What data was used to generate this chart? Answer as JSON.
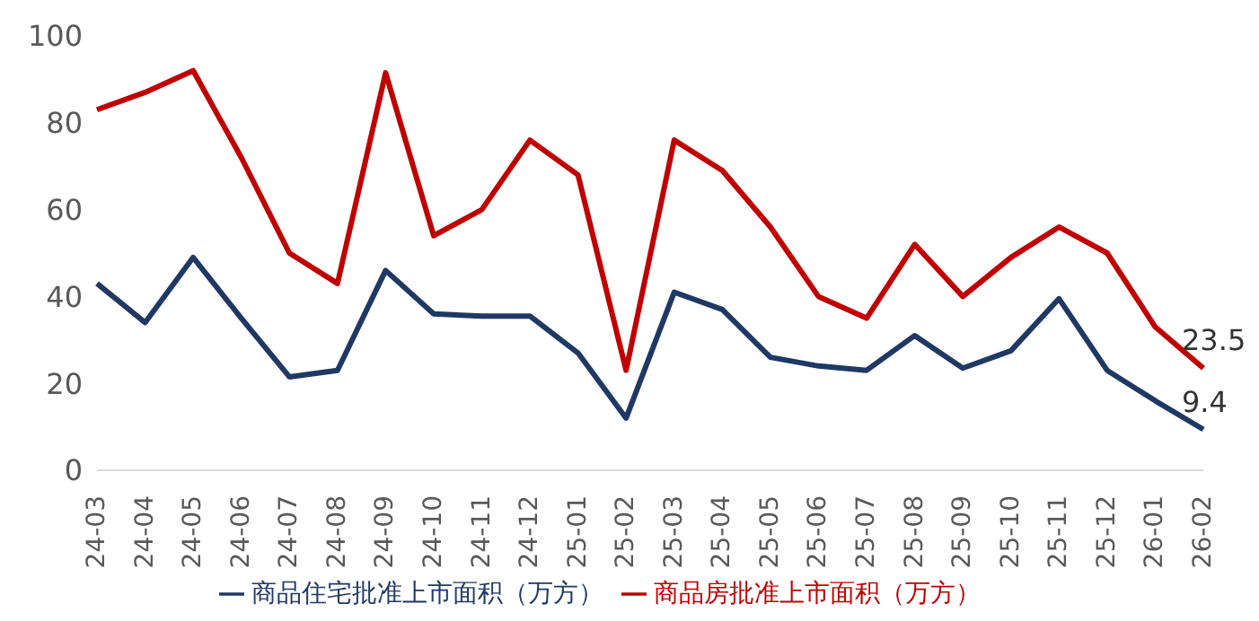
{
  "chart_data": {
    "type": "line",
    "categories": [
      "24-03",
      "24-04",
      "24-05",
      "24-06",
      "24-07",
      "24-08",
      "24-09",
      "24-10",
      "24-11",
      "24-12",
      "25-01",
      "25-02",
      "25-03",
      "25-04",
      "25-05",
      "25-06",
      "25-07",
      "25-08",
      "25-09",
      "25-10",
      "25-11",
      "25-12",
      "26-01",
      "26-02"
    ],
    "series": [
      {
        "name": "商品住宅批准上市面积（万方）",
        "color": "#1f3864",
        "values": [
          43,
          34,
          49,
          35,
          21.5,
          23,
          46,
          36,
          35.5,
          35.5,
          27,
          12,
          41,
          37,
          26,
          24,
          23,
          31,
          23.5,
          27.5,
          39.5,
          23,
          16,
          9.4
        ],
        "value_labels": [
          null,
          null,
          null,
          null,
          null,
          null,
          null,
          null,
          null,
          null,
          null,
          null,
          null,
          null,
          null,
          null,
          null,
          null,
          null,
          null,
          null,
          null,
          null,
          "9.4"
        ]
      },
      {
        "name": "商品房批准上市面积（万方）",
        "color": "#c00000",
        "values": [
          83,
          87,
          92,
          72,
          50,
          43,
          91.5,
          54,
          60,
          76,
          68,
          23,
          76,
          69,
          56,
          40,
          35,
          52,
          40,
          49,
          56,
          50,
          33,
          23.5
        ],
        "value_labels": [
          null,
          null,
          null,
          null,
          null,
          null,
          null,
          null,
          null,
          null,
          null,
          null,
          null,
          null,
          null,
          null,
          null,
          null,
          null,
          null,
          null,
          null,
          null,
          "23.5"
        ]
      }
    ],
    "ylim": [
      0,
      100
    ],
    "yticks": [
      0,
      20,
      40,
      60,
      80,
      100
    ],
    "grid": false,
    "legend": "bottom",
    "marker": "none",
    "line_style": "solid"
  }
}
